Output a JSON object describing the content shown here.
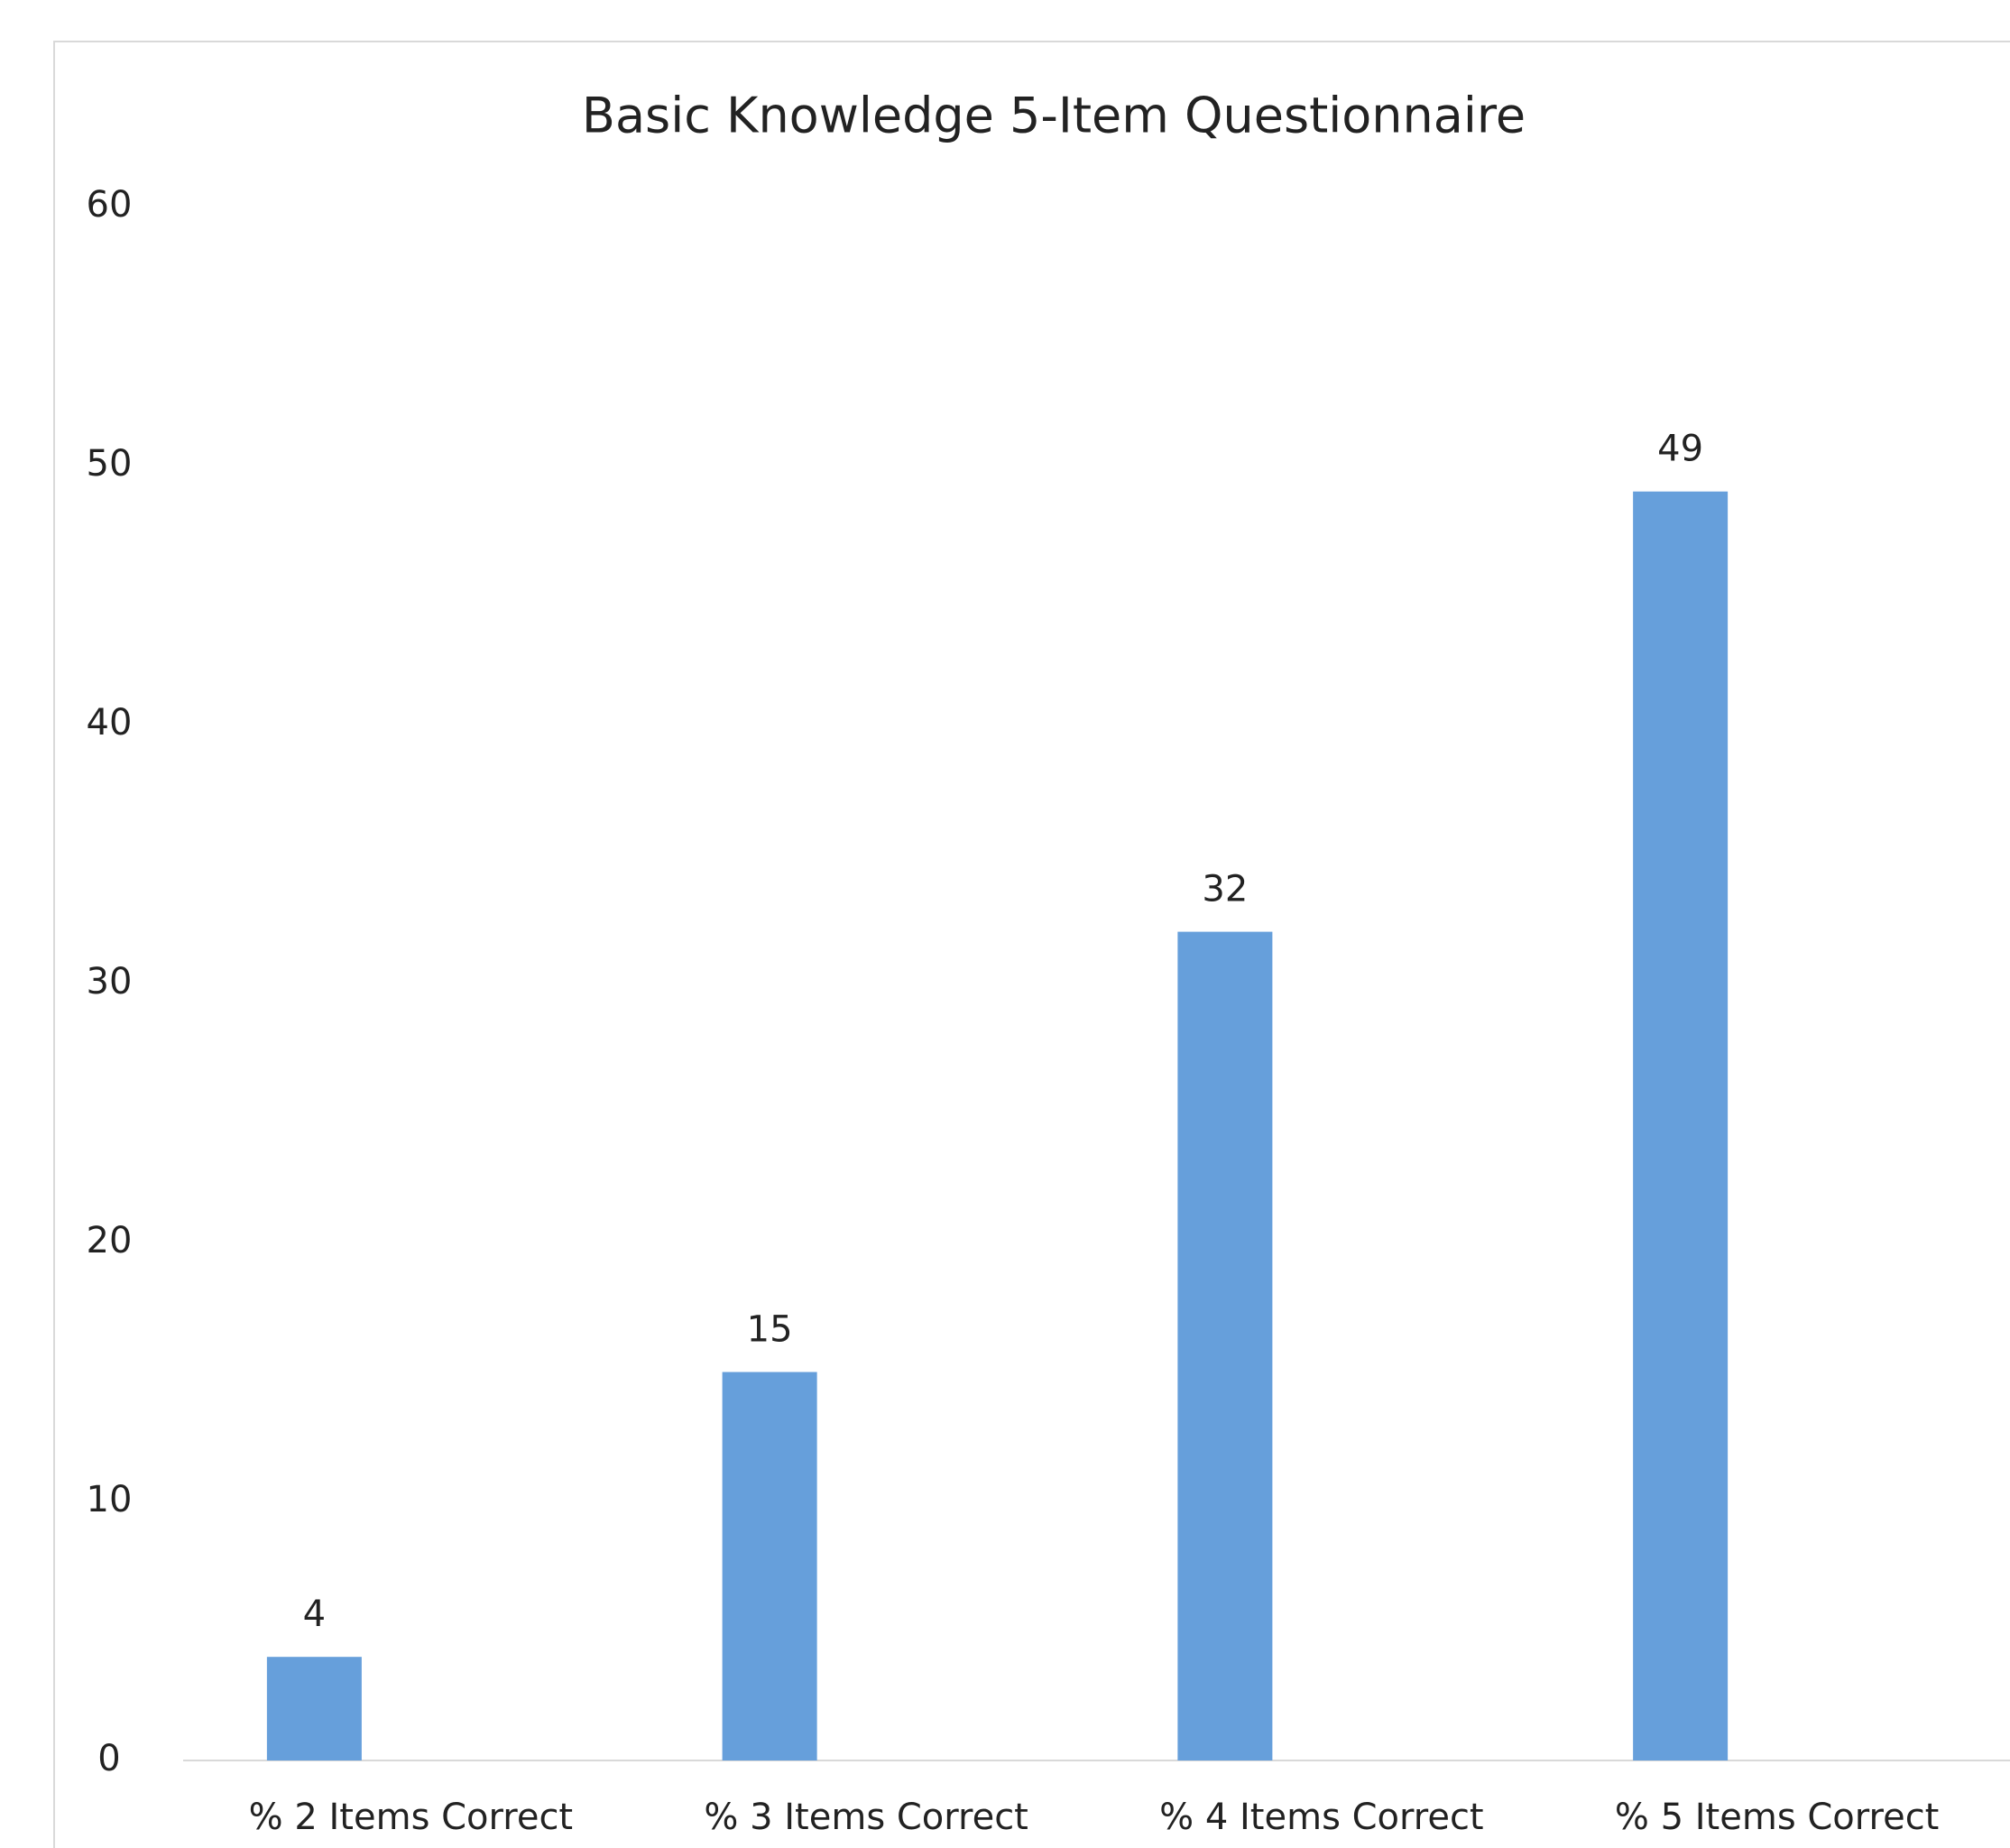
{
  "chart_data": {
    "type": "bar",
    "title": "Basic Knowledge 5-Item Questionnaire",
    "categories": [
      "% 2 Items Correct",
      "% 3 Items Correct",
      "% 4 Items Correct",
      "% 5 Items Correct"
    ],
    "values": [
      4,
      15,
      32,
      49
    ],
    "color": "#669fdb",
    "ylim": [
      0,
      60
    ],
    "yticks": [
      0,
      10,
      20,
      30,
      40,
      50,
      60
    ],
    "grid": false
  }
}
